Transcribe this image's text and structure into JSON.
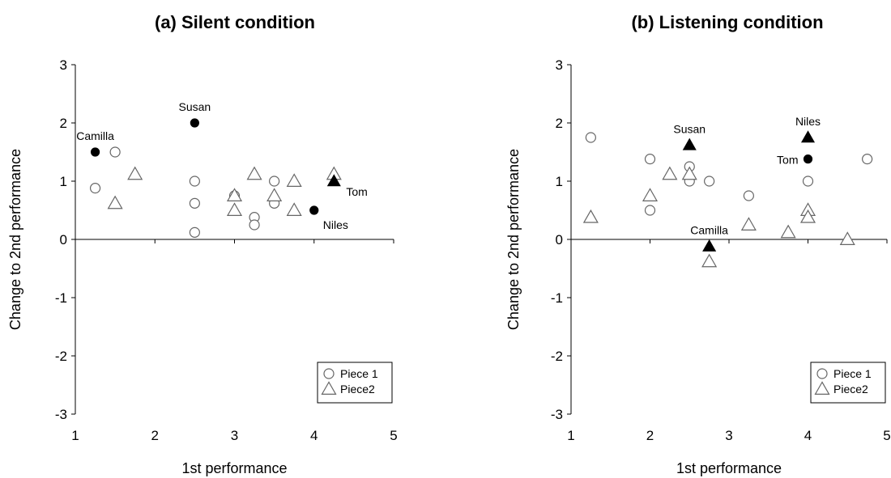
{
  "chart_data": [
    {
      "type": "scatter",
      "title": "(a) Silent condition",
      "xlabel": "1st performance",
      "ylabel": "Change to 2nd performance",
      "xlim": [
        1,
        5
      ],
      "ylim": [
        -3,
        3
      ],
      "xticks": [
        "1",
        "2",
        "3",
        "4",
        "5"
      ],
      "yticks": [
        "-3",
        "-2",
        "-1",
        "0",
        "1",
        "2",
        "3"
      ],
      "legend": {
        "placement": "bottom-right",
        "entries": [
          {
            "label": "Piece 1",
            "marker": "circle"
          },
          {
            "label": "Piece2",
            "marker": "triangle"
          }
        ]
      },
      "series": [
        {
          "name": "Piece 1",
          "marker": "circle",
          "points": [
            {
              "x": 1.25,
              "y": 0.88
            },
            {
              "x": 1.5,
              "y": 1.5
            },
            {
              "x": 2.5,
              "y": 1.0
            },
            {
              "x": 2.5,
              "y": 0.62
            },
            {
              "x": 2.5,
              "y": 0.12
            },
            {
              "x": 3.0,
              "y": 0.75
            },
            {
              "x": 3.25,
              "y": 0.38
            },
            {
              "x": 3.25,
              "y": 0.25
            },
            {
              "x": 3.5,
              "y": 1.0
            },
            {
              "x": 3.5,
              "y": 0.62
            }
          ]
        },
        {
          "name": "Piece2",
          "marker": "triangle",
          "points": [
            {
              "x": 1.5,
              "y": 0.62
            },
            {
              "x": 1.75,
              "y": 1.12
            },
            {
              "x": 3.0,
              "y": 0.75
            },
            {
              "x": 3.0,
              "y": 0.5
            },
            {
              "x": 3.25,
              "y": 1.12
            },
            {
              "x": 3.5,
              "y": 0.75
            },
            {
              "x": 3.75,
              "y": 1.0
            },
            {
              "x": 3.75,
              "y": 0.5
            },
            {
              "x": 4.25,
              "y": 1.12
            }
          ]
        }
      ],
      "highlighted": [
        {
          "label": "Camilla",
          "x": 1.25,
          "y": 1.5,
          "marker": "circle",
          "label_pos": "above"
        },
        {
          "label": "Susan",
          "x": 2.5,
          "y": 2.0,
          "marker": "circle",
          "label_pos": "above"
        },
        {
          "label": "Niles",
          "x": 4.0,
          "y": 0.5,
          "marker": "circle",
          "label_pos": "below-right"
        },
        {
          "label": "Tom",
          "x": 4.25,
          "y": 1.0,
          "marker": "triangle",
          "label_pos": "right"
        }
      ]
    },
    {
      "type": "scatter",
      "title": "(b) Listening condition",
      "xlabel": "1st performance",
      "ylabel": "Change to 2nd performance",
      "xlim": [
        1,
        5
      ],
      "ylim": [
        -3,
        3
      ],
      "xticks": [
        "1",
        "2",
        "3",
        "4",
        "5"
      ],
      "yticks": [
        "-3",
        "-2",
        "-1",
        "0",
        "1",
        "2",
        "3"
      ],
      "legend": {
        "placement": "bottom-right",
        "entries": [
          {
            "label": "Piece 1",
            "marker": "circle"
          },
          {
            "label": "Piece2",
            "marker": "triangle"
          }
        ]
      },
      "series": [
        {
          "name": "Piece 1",
          "marker": "circle",
          "points": [
            {
              "x": 1.25,
              "y": 1.75
            },
            {
              "x": 2.0,
              "y": 1.38
            },
            {
              "x": 2.0,
              "y": 0.5
            },
            {
              "x": 2.5,
              "y": 1.25
            },
            {
              "x": 2.5,
              "y": 1.0
            },
            {
              "x": 2.75,
              "y": 1.0
            },
            {
              "x": 3.25,
              "y": 0.75
            },
            {
              "x": 4.0,
              "y": 1.0
            },
            {
              "x": 4.75,
              "y": 1.38
            }
          ]
        },
        {
          "name": "Piece2",
          "marker": "triangle",
          "points": [
            {
              "x": 1.25,
              "y": 0.38
            },
            {
              "x": 2.0,
              "y": 0.75
            },
            {
              "x": 2.25,
              "y": 1.12
            },
            {
              "x": 2.5,
              "y": 1.12
            },
            {
              "x": 2.75,
              "y": -0.38
            },
            {
              "x": 3.25,
              "y": 0.25
            },
            {
              "x": 3.75,
              "y": 0.12
            },
            {
              "x": 4.0,
              "y": 0.5
            },
            {
              "x": 4.0,
              "y": 0.38
            },
            {
              "x": 4.5,
              "y": 0.0
            }
          ]
        }
      ],
      "highlighted": [
        {
          "label": "Susan",
          "x": 2.5,
          "y": 1.62,
          "marker": "triangle",
          "label_pos": "above"
        },
        {
          "label": "Niles",
          "x": 4.0,
          "y": 1.75,
          "marker": "triangle",
          "label_pos": "above"
        },
        {
          "label": "Tom",
          "x": 4.0,
          "y": 1.38,
          "marker": "circle",
          "label_pos": "left"
        },
        {
          "label": "Camilla",
          "x": 2.75,
          "y": -0.12,
          "marker": "triangle",
          "label_pos": "above"
        }
      ]
    }
  ]
}
